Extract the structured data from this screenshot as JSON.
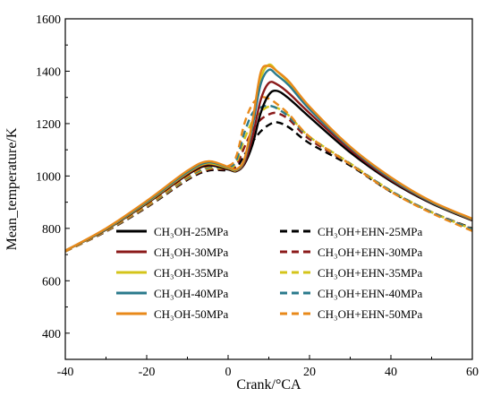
{
  "chart_data": {
    "type": "line",
    "xlabel": "Crank/°CA",
    "ylabel": "Mean_temperature/K",
    "xlim": [
      -40,
      60
    ],
    "ylim": [
      300,
      1600
    ],
    "xticks": [
      -40,
      -20,
      0,
      20,
      40,
      60
    ],
    "yticks": [
      400,
      600,
      800,
      1000,
      1200,
      1400,
      1600
    ],
    "x_tick_labels": [
      "-40",
      "-20",
      "0",
      "20",
      "40",
      "60"
    ],
    "y_tick_labels": [
      "400",
      "600",
      "800",
      "1000",
      "1200",
      "1400",
      "1600"
    ],
    "grid": false,
    "legend_position": "bottom-right",
    "legend_columns": 2,
    "series": [
      {
        "name": "CH₃OH-25MPa",
        "color": "#000000",
        "dash": "solid",
        "x": [
          -40,
          -30,
          -20,
          -10,
          -5,
          0,
          2,
          4,
          6,
          8,
          10,
          12,
          15,
          20,
          30,
          40,
          50,
          60
        ],
        "y": [
          715,
          795,
          895,
          1005,
          1040,
          1025,
          1018,
          1045,
          1120,
          1240,
          1310,
          1325,
          1295,
          1225,
          1090,
          980,
          895,
          830
        ]
      },
      {
        "name": "CH₃OH-30MPa",
        "color": "#8b1a1a",
        "dash": "solid",
        "x": [
          -40,
          -30,
          -20,
          -10,
          -5,
          0,
          2,
          4,
          6,
          8,
          10,
          12,
          15,
          20,
          30,
          40,
          50,
          60
        ],
        "y": [
          715,
          796,
          897,
          1008,
          1045,
          1028,
          1020,
          1050,
          1150,
          1290,
          1355,
          1350,
          1315,
          1240,
          1100,
          985,
          898,
          832
        ]
      },
      {
        "name": "CH₃OH-35MPa",
        "color": "#d4c41a",
        "dash": "solid",
        "x": [
          -40,
          -30,
          -20,
          -10,
          -5,
          0,
          2,
          4,
          6,
          8,
          10,
          12,
          15,
          20,
          30,
          40,
          50,
          60
        ],
        "y": [
          715,
          797,
          899,
          1012,
          1048,
          1030,
          1022,
          1060,
          1200,
          1370,
          1425,
          1400,
          1355,
          1260,
          1110,
          990,
          900,
          834
        ]
      },
      {
        "name": "CH₃OH-40MPa",
        "color": "#2a7a8c",
        "dash": "solid",
        "x": [
          -40,
          -30,
          -20,
          -10,
          -5,
          0,
          2,
          4,
          6,
          8,
          10,
          12,
          15,
          20,
          30,
          40,
          50,
          60
        ],
        "y": [
          715,
          798,
          901,
          1015,
          1052,
          1033,
          1024,
          1060,
          1190,
          1350,
          1405,
          1385,
          1345,
          1255,
          1108,
          990,
          900,
          835
        ]
      },
      {
        "name": "CH₃OH-50MPa",
        "color": "#e8891a",
        "dash": "solid",
        "x": [
          -40,
          -30,
          -20,
          -10,
          -5,
          0,
          2,
          4,
          6,
          8,
          10,
          12,
          15,
          20,
          30,
          40,
          50,
          60
        ],
        "y": [
          715,
          800,
          905,
          1020,
          1056,
          1035,
          1026,
          1065,
          1210,
          1395,
          1420,
          1400,
          1360,
          1265,
          1112,
          995,
          903,
          837
        ]
      },
      {
        "name": "CH₃OH+EHN-25MPa",
        "color": "#000000",
        "dash": "dashed",
        "x": [
          -40,
          -30,
          -20,
          -10,
          -5,
          0,
          2,
          4,
          6,
          8,
          10,
          12,
          15,
          20,
          30,
          40,
          50,
          60
        ],
        "y": [
          712,
          788,
          880,
          985,
          1020,
          1022,
          1030,
          1080,
          1130,
          1170,
          1195,
          1205,
          1185,
          1125,
          1040,
          940,
          862,
          800
        ]
      },
      {
        "name": "CH₃OH+EHN-30MPa",
        "color": "#8b1a1a",
        "dash": "dashed",
        "x": [
          -40,
          -30,
          -20,
          -10,
          -5,
          0,
          2,
          4,
          6,
          8,
          10,
          12,
          15,
          20,
          30,
          40,
          50,
          60
        ],
        "y": [
          712,
          789,
          882,
          988,
          1024,
          1026,
          1040,
          1110,
          1175,
          1215,
          1235,
          1240,
          1215,
          1140,
          1045,
          942,
          862,
          798
        ]
      },
      {
        "name": "CH₃OH+EHN-35MPa",
        "color": "#d4c41a",
        "dash": "dashed",
        "x": [
          -40,
          -30,
          -20,
          -10,
          -5,
          0,
          2,
          4,
          6,
          8,
          10,
          12,
          15,
          20,
          30,
          40,
          50,
          60
        ],
        "y": [
          712,
          790,
          884,
          991,
          1028,
          1030,
          1050,
          1140,
          1210,
          1245,
          1265,
          1260,
          1230,
          1150,
          1048,
          944,
          862,
          797
        ]
      },
      {
        "name": "CH₃OH+EHN-40MPa",
        "color": "#2a7a8c",
        "dash": "dashed",
        "x": [
          -40,
          -30,
          -20,
          -10,
          -5,
          0,
          2,
          4,
          6,
          8,
          10,
          12,
          15,
          20,
          30,
          40,
          50,
          60
        ],
        "y": [
          712,
          791,
          886,
          994,
          1032,
          1034,
          1060,
          1165,
          1240,
          1262,
          1268,
          1258,
          1225,
          1148,
          1046,
          943,
          861,
          796
        ]
      },
      {
        "name": "CH₃OH+EHN-50MPa",
        "color": "#e8891a",
        "dash": "dashed",
        "x": [
          -40,
          -30,
          -20,
          -10,
          -5,
          0,
          2,
          4,
          6,
          8,
          10,
          12,
          15,
          20,
          30,
          40,
          50,
          60
        ],
        "y": [
          712,
          792,
          888,
          998,
          1036,
          1038,
          1075,
          1200,
          1275,
          1300,
          1295,
          1275,
          1235,
          1150,
          1045,
          940,
          858,
          790
        ]
      }
    ]
  }
}
